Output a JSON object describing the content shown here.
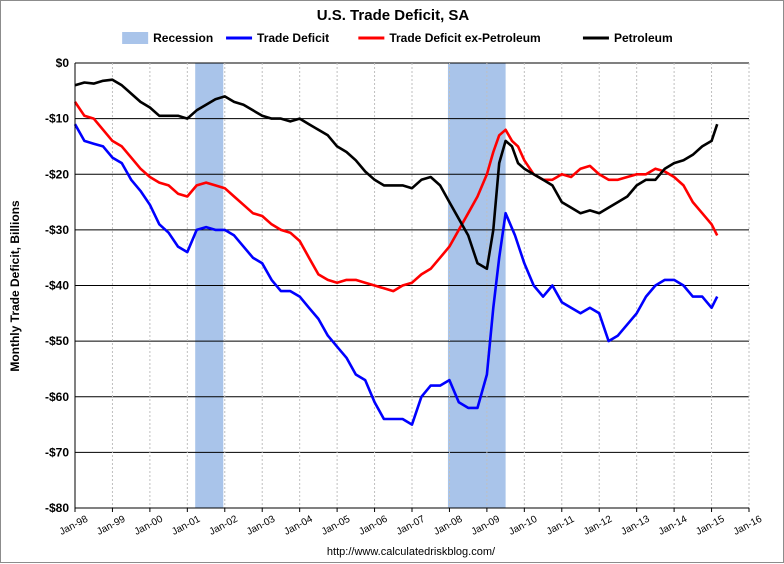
{
  "chart_data": {
    "type": "line",
    "title": "U.S. Trade Deficit, SA",
    "ylabel": "Monthly Trade Deficit, Billions",
    "xlabel": "",
    "source": "http://www.calculatedriskblog.com/",
    "ylim": [
      -80,
      0
    ],
    "yticks": [
      0,
      -10,
      -20,
      -30,
      -40,
      -50,
      -60,
      -70,
      -80
    ],
    "ytick_labels": [
      "$0",
      "-$10",
      "-$20",
      "-$30",
      "-$40",
      "-$50",
      "-$60",
      "-$70",
      "-$80"
    ],
    "xlim": [
      1998.0,
      2016.0
    ],
    "xticks": [
      1998,
      1999,
      2000,
      2001,
      2002,
      2003,
      2004,
      2005,
      2006,
      2007,
      2008,
      2009,
      2010,
      2011,
      2012,
      2013,
      2014,
      2015,
      2016
    ],
    "xtick_labels": [
      "Jan-98",
      "Jan-99",
      "Jan-00",
      "Jan-01",
      "Jan-02",
      "Jan-03",
      "Jan-04",
      "Jan-05",
      "Jan-06",
      "Jan-07",
      "Jan-08",
      "Jan-09",
      "Jan-10",
      "Jan-11",
      "Jan-12",
      "Jan-13",
      "Jan-14",
      "Jan-15",
      "Jan-16"
    ],
    "grid": true,
    "legend": "top",
    "legend_entries": [
      {
        "name": "Recession",
        "kind": "band",
        "color": "#a9c4ea"
      },
      {
        "name": "Trade Deficit",
        "kind": "line",
        "color": "#0000ff"
      },
      {
        "name": "Trade Deficit ex-Petroleum",
        "kind": "line",
        "color": "#ff0000"
      },
      {
        "name": "Petroleum",
        "kind": "line",
        "color": "#000000"
      }
    ],
    "recessions": [
      {
        "start": 2001.21,
        "end": 2001.96
      },
      {
        "start": 2007.96,
        "end": 2009.5
      }
    ],
    "series": [
      {
        "name": "Trade Deficit",
        "color": "#0000ff",
        "points": [
          [
            1998.0,
            -11
          ],
          [
            1998.25,
            -14
          ],
          [
            1998.5,
            -14.5
          ],
          [
            1998.75,
            -15
          ],
          [
            1999.0,
            -17
          ],
          [
            1999.25,
            -18
          ],
          [
            1999.5,
            -21
          ],
          [
            1999.75,
            -23
          ],
          [
            2000.0,
            -25.5
          ],
          [
            2000.25,
            -29
          ],
          [
            2000.5,
            -30.5
          ],
          [
            2000.75,
            -33
          ],
          [
            2001.0,
            -34
          ],
          [
            2001.25,
            -30
          ],
          [
            2001.5,
            -29.5
          ],
          [
            2001.75,
            -30
          ],
          [
            2002.0,
            -30
          ],
          [
            2002.25,
            -31
          ],
          [
            2002.5,
            -33
          ],
          [
            2002.75,
            -35
          ],
          [
            2003.0,
            -36
          ],
          [
            2003.25,
            -39
          ],
          [
            2003.5,
            -41
          ],
          [
            2003.75,
            -41
          ],
          [
            2004.0,
            -42
          ],
          [
            2004.25,
            -44
          ],
          [
            2004.5,
            -46
          ],
          [
            2004.75,
            -49
          ],
          [
            2005.0,
            -51
          ],
          [
            2005.25,
            -53
          ],
          [
            2005.5,
            -56
          ],
          [
            2005.75,
            -57
          ],
          [
            2006.0,
            -61
          ],
          [
            2006.25,
            -64
          ],
          [
            2006.5,
            -64
          ],
          [
            2006.75,
            -64
          ],
          [
            2007.0,
            -65
          ],
          [
            2007.25,
            -60
          ],
          [
            2007.5,
            -58
          ],
          [
            2007.75,
            -58
          ],
          [
            2008.0,
            -57
          ],
          [
            2008.25,
            -61
          ],
          [
            2008.5,
            -62
          ],
          [
            2008.75,
            -62
          ],
          [
            2009.0,
            -56
          ],
          [
            2009.17,
            -44
          ],
          [
            2009.33,
            -35
          ],
          [
            2009.5,
            -27
          ],
          [
            2009.75,
            -31
          ],
          [
            2010.0,
            -36
          ],
          [
            2010.25,
            -40
          ],
          [
            2010.5,
            -42
          ],
          [
            2010.75,
            -40
          ],
          [
            2011.0,
            -43
          ],
          [
            2011.25,
            -44
          ],
          [
            2011.5,
            -45
          ],
          [
            2011.75,
            -44
          ],
          [
            2012.0,
            -45
          ],
          [
            2012.25,
            -50
          ],
          [
            2012.5,
            -49
          ],
          [
            2012.75,
            -47
          ],
          [
            2013.0,
            -45
          ],
          [
            2013.25,
            -42
          ],
          [
            2013.5,
            -40
          ],
          [
            2013.75,
            -39
          ],
          [
            2014.0,
            -39
          ],
          [
            2014.25,
            -40
          ],
          [
            2014.5,
            -42
          ],
          [
            2014.75,
            -42
          ],
          [
            2015.0,
            -44
          ],
          [
            2015.15,
            -42
          ]
        ]
      },
      {
        "name": "Trade Deficit ex-Petroleum",
        "color": "#ff0000",
        "points": [
          [
            1998.0,
            -7
          ],
          [
            1998.25,
            -9.5
          ],
          [
            1998.5,
            -10
          ],
          [
            1998.75,
            -12
          ],
          [
            1999.0,
            -14
          ],
          [
            1999.25,
            -15
          ],
          [
            1999.5,
            -17
          ],
          [
            1999.75,
            -19
          ],
          [
            2000.0,
            -20.5
          ],
          [
            2000.25,
            -21.5
          ],
          [
            2000.5,
            -22
          ],
          [
            2000.75,
            -23.5
          ],
          [
            2001.0,
            -24
          ],
          [
            2001.25,
            -22
          ],
          [
            2001.5,
            -21.5
          ],
          [
            2001.75,
            -22
          ],
          [
            2002.0,
            -22.5
          ],
          [
            2002.25,
            -24
          ],
          [
            2002.5,
            -25.5
          ],
          [
            2002.75,
            -27
          ],
          [
            2003.0,
            -27.5
          ],
          [
            2003.25,
            -29
          ],
          [
            2003.5,
            -30
          ],
          [
            2003.75,
            -30.5
          ],
          [
            2004.0,
            -32
          ],
          [
            2004.25,
            -35
          ],
          [
            2004.5,
            -38
          ],
          [
            2004.75,
            -39
          ],
          [
            2005.0,
            -39.5
          ],
          [
            2005.25,
            -39
          ],
          [
            2005.5,
            -39
          ],
          [
            2005.75,
            -39.5
          ],
          [
            2006.0,
            -40
          ],
          [
            2006.25,
            -40.5
          ],
          [
            2006.5,
            -41
          ],
          [
            2006.75,
            -40
          ],
          [
            2007.0,
            -39.5
          ],
          [
            2007.25,
            -38
          ],
          [
            2007.5,
            -37
          ],
          [
            2007.75,
            -35
          ],
          [
            2008.0,
            -33
          ],
          [
            2008.25,
            -30
          ],
          [
            2008.5,
            -27
          ],
          [
            2008.75,
            -24
          ],
          [
            2009.0,
            -20
          ],
          [
            2009.17,
            -16
          ],
          [
            2009.33,
            -13
          ],
          [
            2009.5,
            -12
          ],
          [
            2009.67,
            -14
          ],
          [
            2009.83,
            -15
          ],
          [
            2010.0,
            -17.5
          ],
          [
            2010.25,
            -20
          ],
          [
            2010.5,
            -21
          ],
          [
            2010.75,
            -21
          ],
          [
            2011.0,
            -20
          ],
          [
            2011.25,
            -20.5
          ],
          [
            2011.5,
            -19
          ],
          [
            2011.75,
            -18.5
          ],
          [
            2012.0,
            -20
          ],
          [
            2012.25,
            -21
          ],
          [
            2012.5,
            -21
          ],
          [
            2012.75,
            -20.5
          ],
          [
            2013.0,
            -20
          ],
          [
            2013.25,
            -20
          ],
          [
            2013.5,
            -19
          ],
          [
            2013.75,
            -19.5
          ],
          [
            2014.0,
            -20.5
          ],
          [
            2014.25,
            -22
          ],
          [
            2014.5,
            -25
          ],
          [
            2014.75,
            -27
          ],
          [
            2015.0,
            -29
          ],
          [
            2015.15,
            -31
          ]
        ]
      },
      {
        "name": "Petroleum",
        "color": "#000000",
        "points": [
          [
            1998.0,
            -4
          ],
          [
            1998.25,
            -3.5
          ],
          [
            1998.5,
            -3.7
          ],
          [
            1998.75,
            -3.2
          ],
          [
            1999.0,
            -3
          ],
          [
            1999.25,
            -4
          ],
          [
            1999.5,
            -5.5
          ],
          [
            1999.75,
            -7
          ],
          [
            2000.0,
            -8
          ],
          [
            2000.25,
            -9.5
          ],
          [
            2000.5,
            -9.5
          ],
          [
            2000.75,
            -9.5
          ],
          [
            2001.0,
            -10
          ],
          [
            2001.25,
            -8.5
          ],
          [
            2001.5,
            -7.5
          ],
          [
            2001.75,
            -6.5
          ],
          [
            2002.0,
            -6
          ],
          [
            2002.25,
            -7
          ],
          [
            2002.5,
            -7.5
          ],
          [
            2002.75,
            -8.5
          ],
          [
            2003.0,
            -9.5
          ],
          [
            2003.25,
            -10
          ],
          [
            2003.5,
            -10
          ],
          [
            2003.75,
            -10.5
          ],
          [
            2004.0,
            -10
          ],
          [
            2004.25,
            -11
          ],
          [
            2004.5,
            -12
          ],
          [
            2004.75,
            -13
          ],
          [
            2005.0,
            -15
          ],
          [
            2005.25,
            -16
          ],
          [
            2005.5,
            -17.5
          ],
          [
            2005.75,
            -19.5
          ],
          [
            2006.0,
            -21
          ],
          [
            2006.25,
            -22
          ],
          [
            2006.5,
            -22
          ],
          [
            2006.75,
            -22
          ],
          [
            2007.0,
            -22.5
          ],
          [
            2007.25,
            -21
          ],
          [
            2007.5,
            -20.5
          ],
          [
            2007.75,
            -22
          ],
          [
            2008.0,
            -25
          ],
          [
            2008.25,
            -28
          ],
          [
            2008.5,
            -31
          ],
          [
            2008.75,
            -36
          ],
          [
            2009.0,
            -37
          ],
          [
            2009.17,
            -30
          ],
          [
            2009.33,
            -18
          ],
          [
            2009.5,
            -14
          ],
          [
            2009.67,
            -15
          ],
          [
            2009.83,
            -18
          ],
          [
            2010.0,
            -19
          ],
          [
            2010.25,
            -20
          ],
          [
            2010.5,
            -21
          ],
          [
            2010.75,
            -22
          ],
          [
            2011.0,
            -25
          ],
          [
            2011.25,
            -26
          ],
          [
            2011.5,
            -27
          ],
          [
            2011.75,
            -26.5
          ],
          [
            2012.0,
            -27
          ],
          [
            2012.25,
            -26
          ],
          [
            2012.5,
            -25
          ],
          [
            2012.75,
            -24
          ],
          [
            2013.0,
            -22
          ],
          [
            2013.25,
            -21
          ],
          [
            2013.5,
            -21
          ],
          [
            2013.75,
            -19
          ],
          [
            2014.0,
            -18
          ],
          [
            2014.25,
            -17.5
          ],
          [
            2014.5,
            -16.5
          ],
          [
            2014.75,
            -15
          ],
          [
            2015.0,
            -14
          ],
          [
            2015.15,
            -11
          ]
        ]
      }
    ]
  }
}
